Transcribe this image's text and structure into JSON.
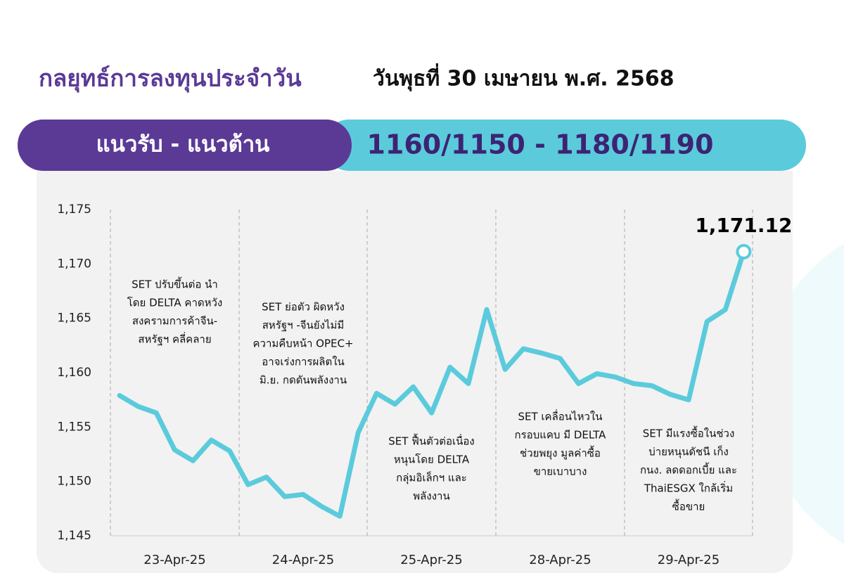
{
  "header": {
    "title": "กลยุทธ์การลงทุนประจำวัน",
    "date": "วันพุธที่ 30 เมษายน พ.ศ. 2568"
  },
  "banner": {
    "label": "แนวรับ - แนวต้าน",
    "range": "1160/1150 - 1180/1190"
  },
  "chart_data": {
    "type": "line",
    "color": "#5bcbdc",
    "ylim": [
      1145,
      1175
    ],
    "yticks": [
      {
        "value": 1145,
        "label": "1,145"
      },
      {
        "value": 1150,
        "label": "1,150"
      },
      {
        "value": 1155,
        "label": "1,155"
      },
      {
        "value": 1160,
        "label": "1,160"
      },
      {
        "value": 1165,
        "label": "1,165"
      },
      {
        "value": 1170,
        "label": "1,170"
      },
      {
        "value": 1175,
        "label": "1,175"
      }
    ],
    "days": [
      {
        "label": "23-Apr-25",
        "values": [
          1157.9,
          1156.9,
          1156.3,
          1152.9,
          1151.9,
          1153.8,
          1152.8
        ],
        "annotation": [
          "SET ปรับขึ้นต่อ นำ",
          "โดย DELTA คาดหวัง",
          "สงครามการค้าจีน-",
          "สหรัฐฯ คลี่คลาย"
        ]
      },
      {
        "label": "24-Apr-25",
        "values": [
          1149.7,
          1150.4,
          1148.6,
          1148.8,
          1147.7,
          1146.8,
          1154.5
        ],
        "annotation": [
          "SET ย่อตัว ผิดหวัง",
          "สหรัฐฯ -จีนยังไม่มี",
          "ความคืบหน้า OPEC+",
          "อาจเร่งการผลิตใน",
          "มิ.ย. กดดันพลังงาน"
        ]
      },
      {
        "label": "25-Apr-25",
        "values": [
          1158.1,
          1157.1,
          1158.7,
          1156.3,
          1160.5,
          1159.0,
          1165.8
        ],
        "annotation": [
          "SET ฟื้นตัวต่อเนื่อง",
          "หนุนโดย DELTA",
          "กลุ่มอิเล็กฯ และ",
          "พลังงาน"
        ]
      },
      {
        "label": "28-Apr-25",
        "values": [
          1160.3,
          1162.2,
          1161.8,
          1161.3,
          1159.0,
          1159.9,
          1159.6
        ],
        "annotation": [
          "SET เคลื่อนไหวใน",
          "กรอบแคบ มี DELTA",
          "ช่วยพยุง มูลค่าซื้อ",
          "ขายเบาบาง"
        ]
      },
      {
        "label": "29-Apr-25",
        "values": [
          1159.0,
          1158.8,
          1158.0,
          1157.5,
          1164.7,
          1165.8,
          1171.12
        ],
        "last_label": "1,171.12",
        "annotation": [
          "SET มีแรงซื้อในช่วง",
          "บ่ายหนุนดัชนี เก็ง",
          "กนง. ลดดอกเบี้ย และ",
          "ThaiESGX ใกล้เริ่ม",
          "ซื้อขาย"
        ]
      }
    ]
  }
}
